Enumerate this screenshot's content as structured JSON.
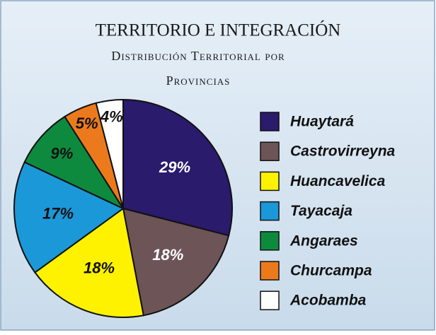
{
  "chart_data": {
    "type": "pie",
    "title": "TERRITORIO E INTEGRACIÓN",
    "subtitle": [
      "Distribución Territorial por",
      "Provincias"
    ],
    "categories": [
      "Huaytará",
      "Castrovirreyna",
      "Huancavelica",
      "Tayacaja",
      "Angaraes",
      "Churcampa",
      "Acobamba"
    ],
    "values": [
      29,
      18,
      18,
      17,
      9,
      5,
      4
    ],
    "value_labels": [
      "29%",
      "18%",
      "18%",
      "17%",
      "9%",
      "5%",
      "4%"
    ],
    "colors": [
      "#2a1b6c",
      "#6d5457",
      "#fff200",
      "#1b98d8",
      "#0e8a3f",
      "#ec7a1c",
      "#ffffff"
    ],
    "legend": "right"
  }
}
